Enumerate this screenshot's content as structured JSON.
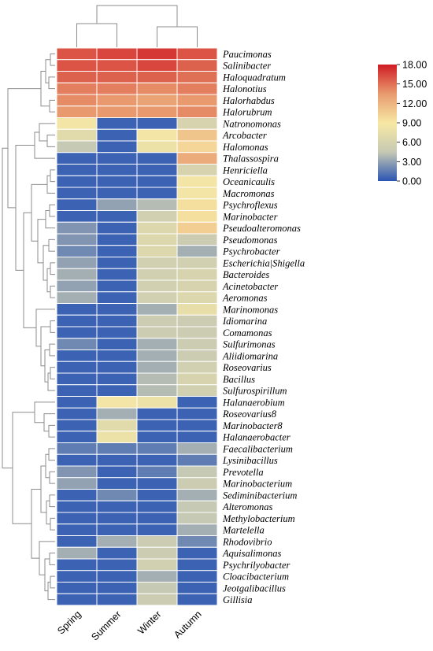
{
  "chart_data": {
    "type": "heatmap",
    "title": "",
    "columns": [
      "Spring",
      "Summer",
      "Winter",
      "Autumn"
    ],
    "rows": [
      "Paucimonas",
      "Salinibacter",
      "Haloquadratum",
      "Halonotius",
      "Halorhabdus",
      "Halorubrum",
      "Natronomonas",
      "Arcobacter",
      "Halomonas",
      "Thalassospira",
      "Henriciella",
      "Oceanicaulis",
      "Macromonas",
      "Psychroflexus",
      "Marinobacter",
      "Pseudoalteromonas",
      "Pseudomonas",
      "Psychrobacter",
      "Escherichia|Shigella",
      "Bacteroides",
      "Acinetobacter",
      "Aeromonas",
      "Marinomonas",
      "Idiomarina",
      "Comamonas",
      "Sulfurimonas",
      "Aliidiomarina",
      "Roseovarius",
      "Bacillus",
      "Sulfurospirillum",
      "Halanaerobium",
      "Roseovarius8",
      "Marinobacter8",
      "Halanaerobacter",
      "Faecalibacterium",
      "Lysinibacillus",
      "Prevotella",
      "Marinobacterium",
      "Sediminibacterium",
      "Alteromonas",
      "Methylobacterium",
      "Martelella",
      "Rhodovibrio",
      "Aquisalimonas",
      "Psychrilyobacter",
      "Cloacibacterium",
      "Jeotgalibacillus",
      "Gillisia"
    ],
    "values": [
      [
        16.0,
        16.5,
        17.0,
        16.0
      ],
      [
        16.0,
        16.0,
        16.5,
        15.5
      ],
      [
        15.5,
        15.5,
        15.5,
        15.0
      ],
      [
        14.5,
        14.5,
        14.0,
        14.5
      ],
      [
        14.0,
        13.5,
        13.0,
        13.5
      ],
      [
        13.5,
        13.5,
        13.5,
        14.0
      ],
      [
        8.5,
        0.5,
        0.5,
        6.0
      ],
      [
        7.0,
        0.5,
        8.5,
        11.0
      ],
      [
        4.5,
        0.5,
        8.0,
        10.0
      ],
      [
        0.5,
        0.5,
        0.5,
        12.5
      ],
      [
        0.5,
        0.5,
        0.5,
        6.0
      ],
      [
        0.5,
        0.5,
        0.5,
        8.5
      ],
      [
        0.5,
        0.5,
        0.5,
        8.5
      ],
      [
        0.5,
        3.0,
        4.0,
        9.5
      ],
      [
        0.5,
        0.5,
        5.5,
        9.5
      ],
      [
        2.5,
        0.5,
        6.5,
        10.5
      ],
      [
        2.5,
        0.5,
        6.5,
        5.0
      ],
      [
        2.0,
        0.5,
        6.5,
        3.5
      ],
      [
        3.0,
        0.5,
        5.5,
        5.5
      ],
      [
        3.5,
        0.5,
        5.5,
        6.0
      ],
      [
        3.0,
        0.5,
        5.5,
        6.0
      ],
      [
        3.5,
        0.5,
        5.5,
        6.5
      ],
      [
        0.5,
        0.5,
        3.5,
        7.5
      ],
      [
        0.5,
        0.5,
        5.0,
        5.0
      ],
      [
        0.5,
        0.5,
        5.0,
        5.0
      ],
      [
        2.0,
        0.5,
        3.5,
        5.0
      ],
      [
        0.5,
        0.5,
        3.5,
        5.0
      ],
      [
        0.5,
        0.5,
        3.5,
        5.5
      ],
      [
        0.5,
        0.5,
        4.0,
        6.0
      ],
      [
        0.5,
        0.5,
        4.0,
        5.5
      ],
      [
        0.5,
        8.5,
        8.0,
        0.5
      ],
      [
        0.5,
        3.5,
        0.5,
        0.5
      ],
      [
        0.5,
        7.0,
        0.5,
        0.5
      ],
      [
        0.5,
        8.0,
        0.5,
        0.5
      ],
      [
        1.5,
        1.5,
        1.5,
        3.5
      ],
      [
        0.5,
        0.5,
        0.5,
        1.5
      ],
      [
        2.5,
        0.5,
        1.5,
        4.5
      ],
      [
        3.0,
        0.5,
        0.5,
        5.0
      ],
      [
        0.5,
        2.0,
        0.5,
        3.5
      ],
      [
        0.5,
        0.5,
        0.5,
        4.5
      ],
      [
        0.5,
        0.5,
        0.5,
        4.5
      ],
      [
        0.5,
        0.5,
        0.5,
        3.5
      ],
      [
        0.5,
        3.5,
        5.0,
        2.0
      ],
      [
        3.5,
        0.5,
        5.0,
        0.5
      ],
      [
        0.5,
        0.5,
        5.5,
        0.5
      ],
      [
        0.5,
        0.5,
        3.5,
        0.5
      ],
      [
        0.5,
        0.5,
        4.5,
        0.5
      ],
      [
        0.5,
        0.5,
        5.0,
        0.5
      ]
    ],
    "colorbar": {
      "ticks": [
        "18.00",
        "15.00",
        "12.00",
        "9.00",
        "6.00",
        "3.00",
        "0.00"
      ],
      "range": [
        0,
        18
      ],
      "colors": [
        "#2b55b3",
        "#c6c9b3",
        "#f7e8a4",
        "#e89a6e",
        "#d01c24"
      ]
    },
    "xlabel": "",
    "ylabel": "",
    "grid": false
  }
}
